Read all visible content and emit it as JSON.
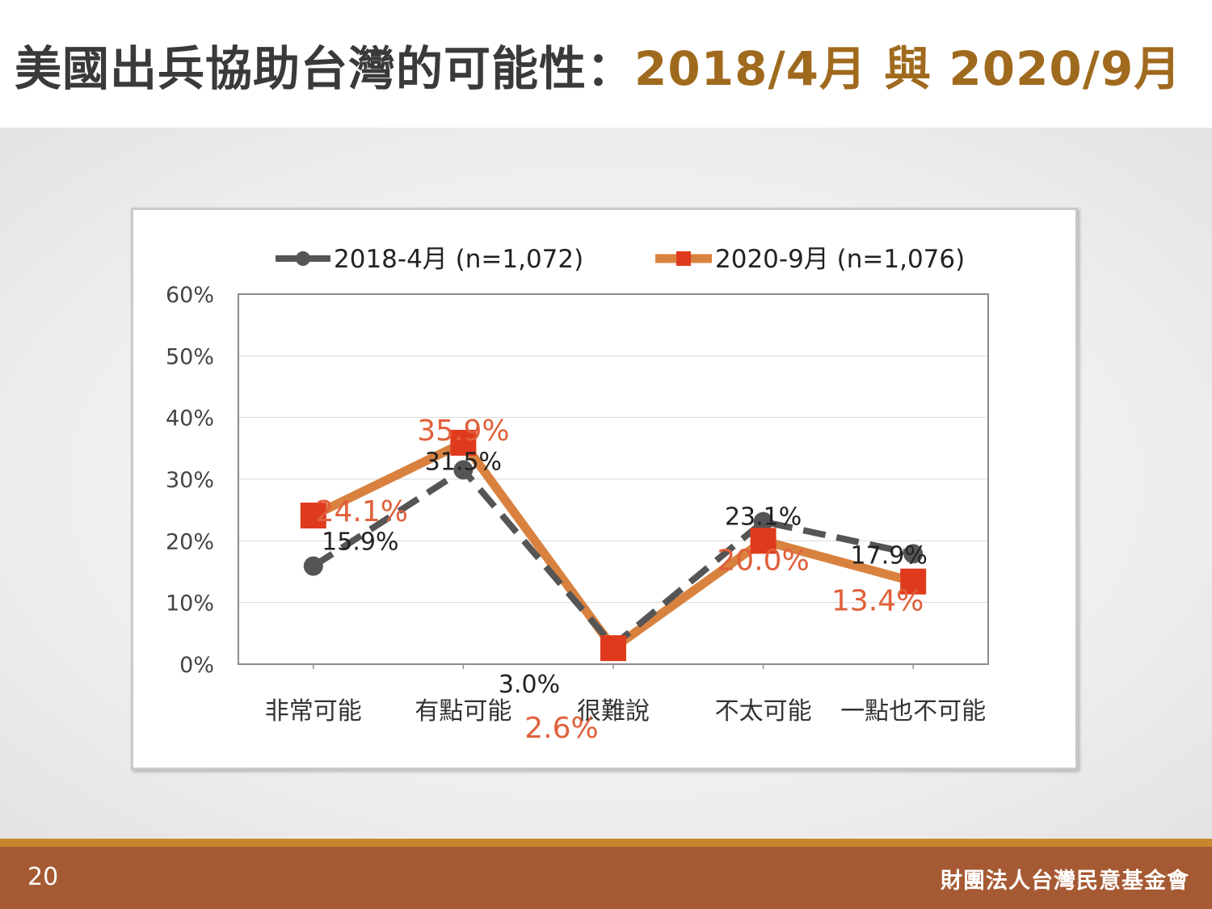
{
  "slide": {
    "title_main": "美國出兵協助台灣的可能性：",
    "title_dates": "2018/4月 與 2020/9月",
    "page_number": "20",
    "organization": "財團法人台灣民意基金會"
  },
  "colors": {
    "series_2018": "#555555",
    "series_2020": "#d9823f",
    "marker_2020": "#e03a1e",
    "label_2020": "#e0603a",
    "title_highlight": "#a06a1e",
    "footer": "#a65a33"
  },
  "chart_data": {
    "type": "line",
    "categories": [
      "非常可能",
      "有點可能",
      "很難說",
      "不太可能",
      "一點也不可能"
    ],
    "ylim": [
      0,
      60
    ],
    "yticks": [
      0,
      10,
      20,
      30,
      40,
      50,
      60
    ],
    "ytick_labels": [
      "0%",
      "10%",
      "20%",
      "30%",
      "40%",
      "50%",
      "60%"
    ],
    "grid": true,
    "legend_position": "top",
    "series": [
      {
        "name": "2018-4月 (n=1,072)",
        "values": [
          15.9,
          31.5,
          3.0,
          23.1,
          17.9
        ],
        "labels": [
          "15.9%",
          "31.5%",
          "3.0%",
          "23.1%",
          "17.9%"
        ],
        "style": "dashed",
        "marker": "circle"
      },
      {
        "name": "2020-9月 (n=1,076)",
        "values": [
          24.1,
          35.9,
          2.6,
          20.0,
          13.4
        ],
        "labels": [
          "24.1%",
          "35.9%",
          "2.6%",
          "20.0%",
          "13.4%"
        ],
        "style": "solid",
        "marker": "square"
      }
    ]
  }
}
